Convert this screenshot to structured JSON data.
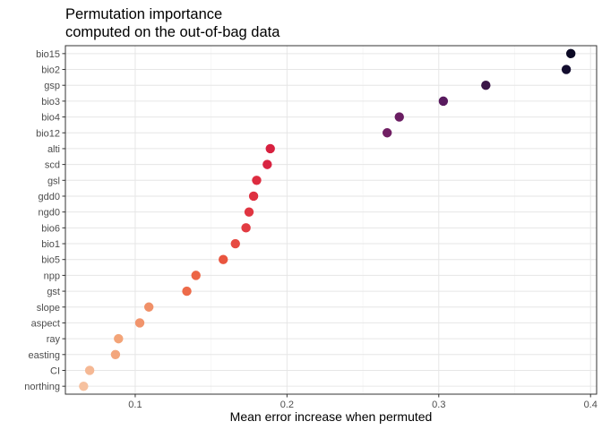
{
  "chart_data": {
    "type": "scatter",
    "title": [
      "Permutation importance",
      "computed on the out-of-bag data"
    ],
    "xlabel": "Mean error increase when permuted",
    "ylabel": "",
    "xlim": [
      0.054,
      0.404
    ],
    "x_ticks": [
      0.1,
      0.2,
      0.3,
      0.4
    ],
    "x_tick_labels": [
      "0.1",
      "0.2",
      "0.3",
      "0.4"
    ],
    "grid": true,
    "legend": "none",
    "categories": [
      "bio15",
      "bio2",
      "gsp",
      "bio3",
      "bio4",
      "bio12",
      "alti",
      "scd",
      "gsl",
      "gdd0",
      "ngd0",
      "bio6",
      "bio1",
      "bio5",
      "npp",
      "gst",
      "slope",
      "aspect",
      "ray",
      "easting",
      "CI",
      "northing"
    ],
    "values": [
      0.387,
      0.384,
      0.331,
      0.303,
      0.274,
      0.266,
      0.189,
      0.187,
      0.18,
      0.178,
      0.175,
      0.173,
      0.166,
      0.158,
      0.14,
      0.134,
      0.109,
      0.103,
      0.089,
      0.087,
      0.07,
      0.066
    ],
    "colors": [
      "#0b0924",
      "#130d2f",
      "#3a1547",
      "#581a5e",
      "#6a1d62",
      "#701f63",
      "#d7203f",
      "#d82441",
      "#dd2c40",
      "#de3040",
      "#e03541",
      "#e23b42",
      "#e64a42",
      "#e9553f",
      "#ec6545",
      "#ed6b4a",
      "#f09068",
      "#f1946c",
      "#f3a478",
      "#f3a67c",
      "#f5b894",
      "#f6c19f"
    ]
  }
}
